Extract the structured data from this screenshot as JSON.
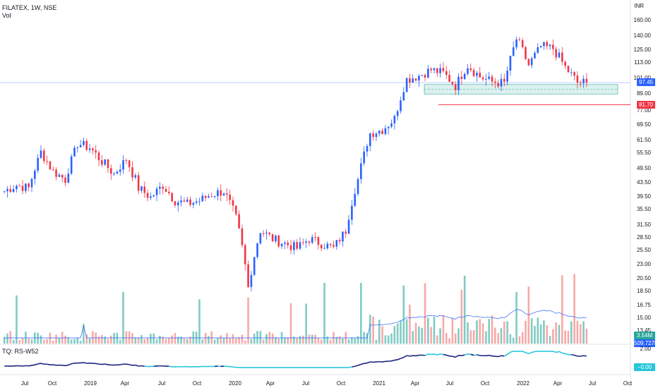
{
  "header": {
    "symbol_line": "FILATEX, 1W, NSE",
    "volume_label": "Vol",
    "indicator_label": "TQ: RS-W52"
  },
  "price_axis": {
    "unit": "INR",
    "ticks": [
      "160.00",
      "140.00",
      "125.00",
      "113.00",
      "101.00",
      "89.00",
      "77.00",
      "69.50",
      "61.50",
      "55.50",
      "49.50",
      "43.50",
      "39.50",
      "35.50",
      "31.50",
      "28.50",
      "25.50",
      "23.00",
      "20.50",
      "18.50",
      "16.75",
      "15.00",
      "13.45"
    ]
  },
  "tags": {
    "last_price": "97.45",
    "support_level": "81.70",
    "volume_value": "3.54M",
    "volume_ma": "509.727K",
    "rs_value": "−0.00",
    "rs_top": "2.00"
  },
  "time_axis": {
    "labels": [
      "Jul",
      "Oct",
      "2019",
      "Apr",
      "Jul",
      "Oct",
      "2020",
      "Apr",
      "Jul",
      "Oct",
      "2021",
      "Apr",
      "Jul",
      "Oct",
      "2022",
      "Apr",
      "Jul",
      "Oct"
    ]
  },
  "colors": {
    "up": "#2962ff",
    "down": "#f23645",
    "vol_up": "#80cbc4",
    "vol_down": "#f7a9a7",
    "rs_pos": "#1a237e",
    "rs_neg": "#26c6da",
    "zone": "#b2dfdb"
  },
  "chart_data": {
    "type": "candlestick",
    "title": "FILATEX, 1W, NSE",
    "ylabel": "INR",
    "close_series": [
      {
        "t": "2018-07",
        "c": 41
      },
      {
        "t": "2018-08",
        "c": 43
      },
      {
        "t": "2018-09",
        "c": 42
      },
      {
        "t": "2018-10",
        "c": 56
      },
      {
        "t": "2018-11",
        "c": 48
      },
      {
        "t": "2018-12",
        "c": 45
      },
      {
        "t": "2019-01",
        "c": 60
      },
      {
        "t": "2019-02",
        "c": 58
      },
      {
        "t": "2019-03",
        "c": 52
      },
      {
        "t": "2019-04",
        "c": 47
      },
      {
        "t": "2019-05",
        "c": 53
      },
      {
        "t": "2019-06",
        "c": 42
      },
      {
        "t": "2019-07",
        "c": 39
      },
      {
        "t": "2019-08",
        "c": 43
      },
      {
        "t": "2019-09",
        "c": 38
      },
      {
        "t": "2019-10",
        "c": 37
      },
      {
        "t": "2019-11",
        "c": 38
      },
      {
        "t": "2019-12",
        "c": 40
      },
      {
        "t": "2020-01",
        "c": 41
      },
      {
        "t": "2020-02",
        "c": 33
      },
      {
        "t": "2020-03",
        "c": 19
      },
      {
        "t": "2020-04",
        "c": 30
      },
      {
        "t": "2020-05",
        "c": 28
      },
      {
        "t": "2020-06",
        "c": 27
      },
      {
        "t": "2020-07",
        "c": 26
      },
      {
        "t": "2020-08",
        "c": 28
      },
      {
        "t": "2020-09",
        "c": 27
      },
      {
        "t": "2020-10",
        "c": 26
      },
      {
        "t": "2020-11",
        "c": 30
      },
      {
        "t": "2020-12",
        "c": 45
      },
      {
        "t": "2021-01",
        "c": 65
      },
      {
        "t": "2021-02",
        "c": 67
      },
      {
        "t": "2021-03",
        "c": 73
      },
      {
        "t": "2021-04",
        "c": 100
      },
      {
        "t": "2021-05",
        "c": 103
      },
      {
        "t": "2021-06",
        "c": 108
      },
      {
        "t": "2021-07",
        "c": 105
      },
      {
        "t": "2021-08",
        "c": 95
      },
      {
        "t": "2021-09",
        "c": 112
      },
      {
        "t": "2021-10",
        "c": 102
      },
      {
        "t": "2021-11",
        "c": 98
      },
      {
        "t": "2021-12",
        "c": 97
      },
      {
        "t": "2022-01",
        "c": 138
      },
      {
        "t": "2022-02",
        "c": 112
      },
      {
        "t": "2022-03",
        "c": 130
      },
      {
        "t": "2022-04",
        "c": 128
      },
      {
        "t": "2022-05",
        "c": 110
      },
      {
        "t": "2022-06",
        "c": 97.45
      }
    ],
    "horizontal_levels": [
      97.45,
      81.7
    ],
    "support_zone": [
      89,
      96
    ],
    "volume_last": "3.54M",
    "volume_ma": "509.727K"
  }
}
